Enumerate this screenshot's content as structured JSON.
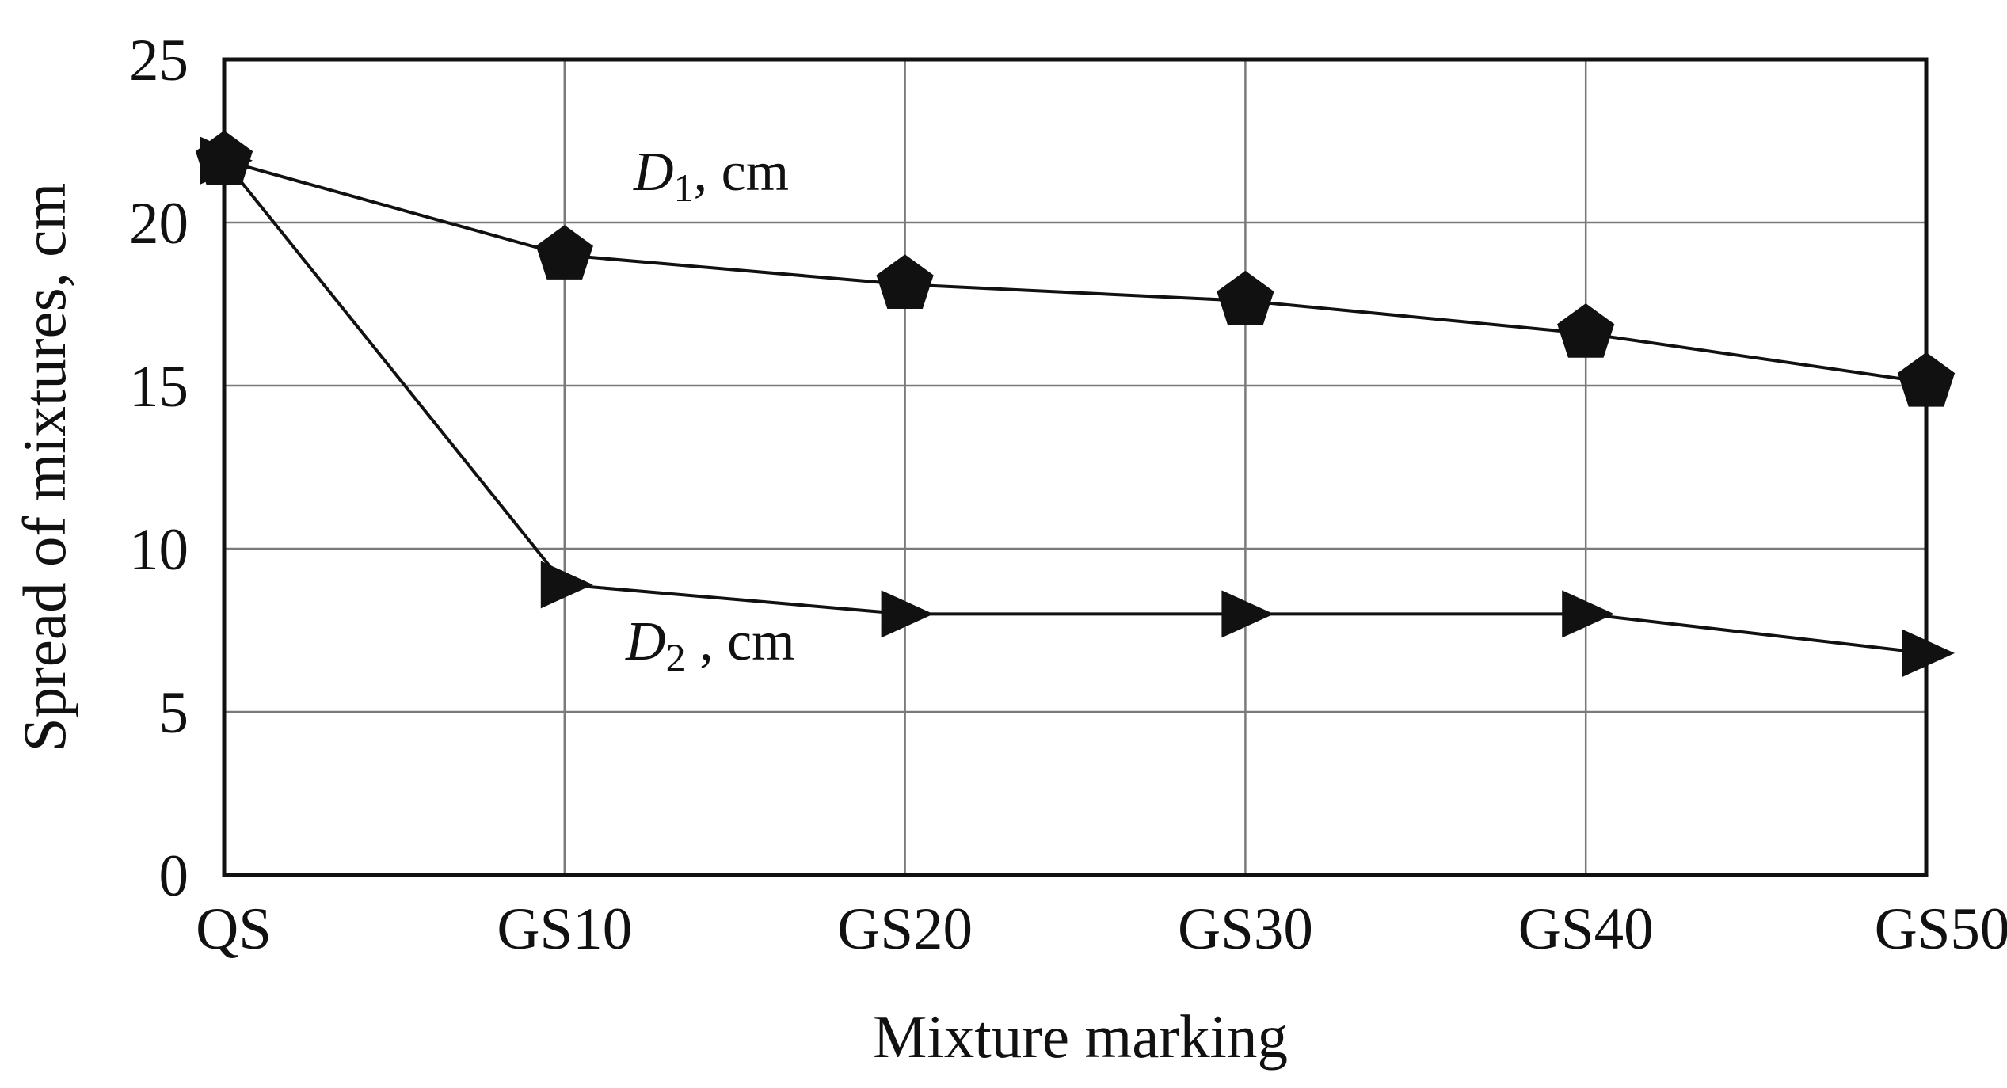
{
  "chart_data": {
    "type": "line",
    "categories": [
      "QS",
      "GS10",
      "GS20",
      "GS30",
      "GS40",
      "GS50"
    ],
    "ylim": [
      0,
      25
    ],
    "yticks": [
      "0",
      "5",
      "10",
      "15",
      "20",
      "25"
    ],
    "xlabel": "Mixture marking",
    "ylabel": "Spread of mixtures, cm",
    "grid": true,
    "series": [
      {
        "name": "D1, cm",
        "label": {
          "var": "D",
          "sub": "1",
          "rest": ", cm"
        },
        "marker": "pentagon",
        "values": [
          21.9,
          19.0,
          18.1,
          17.6,
          16.6,
          15.1
        ]
      },
      {
        "name": "D2 , cm",
        "label": {
          "var": "D",
          "sub": "2",
          "rest": " , cm"
        },
        "marker": "triangle-right",
        "values": [
          21.9,
          8.9,
          8.0,
          8.0,
          8.0,
          6.8
        ]
      }
    ],
    "colors": {
      "line": "#111111",
      "grid": "#7a7a7a",
      "frame": "#111111"
    }
  }
}
